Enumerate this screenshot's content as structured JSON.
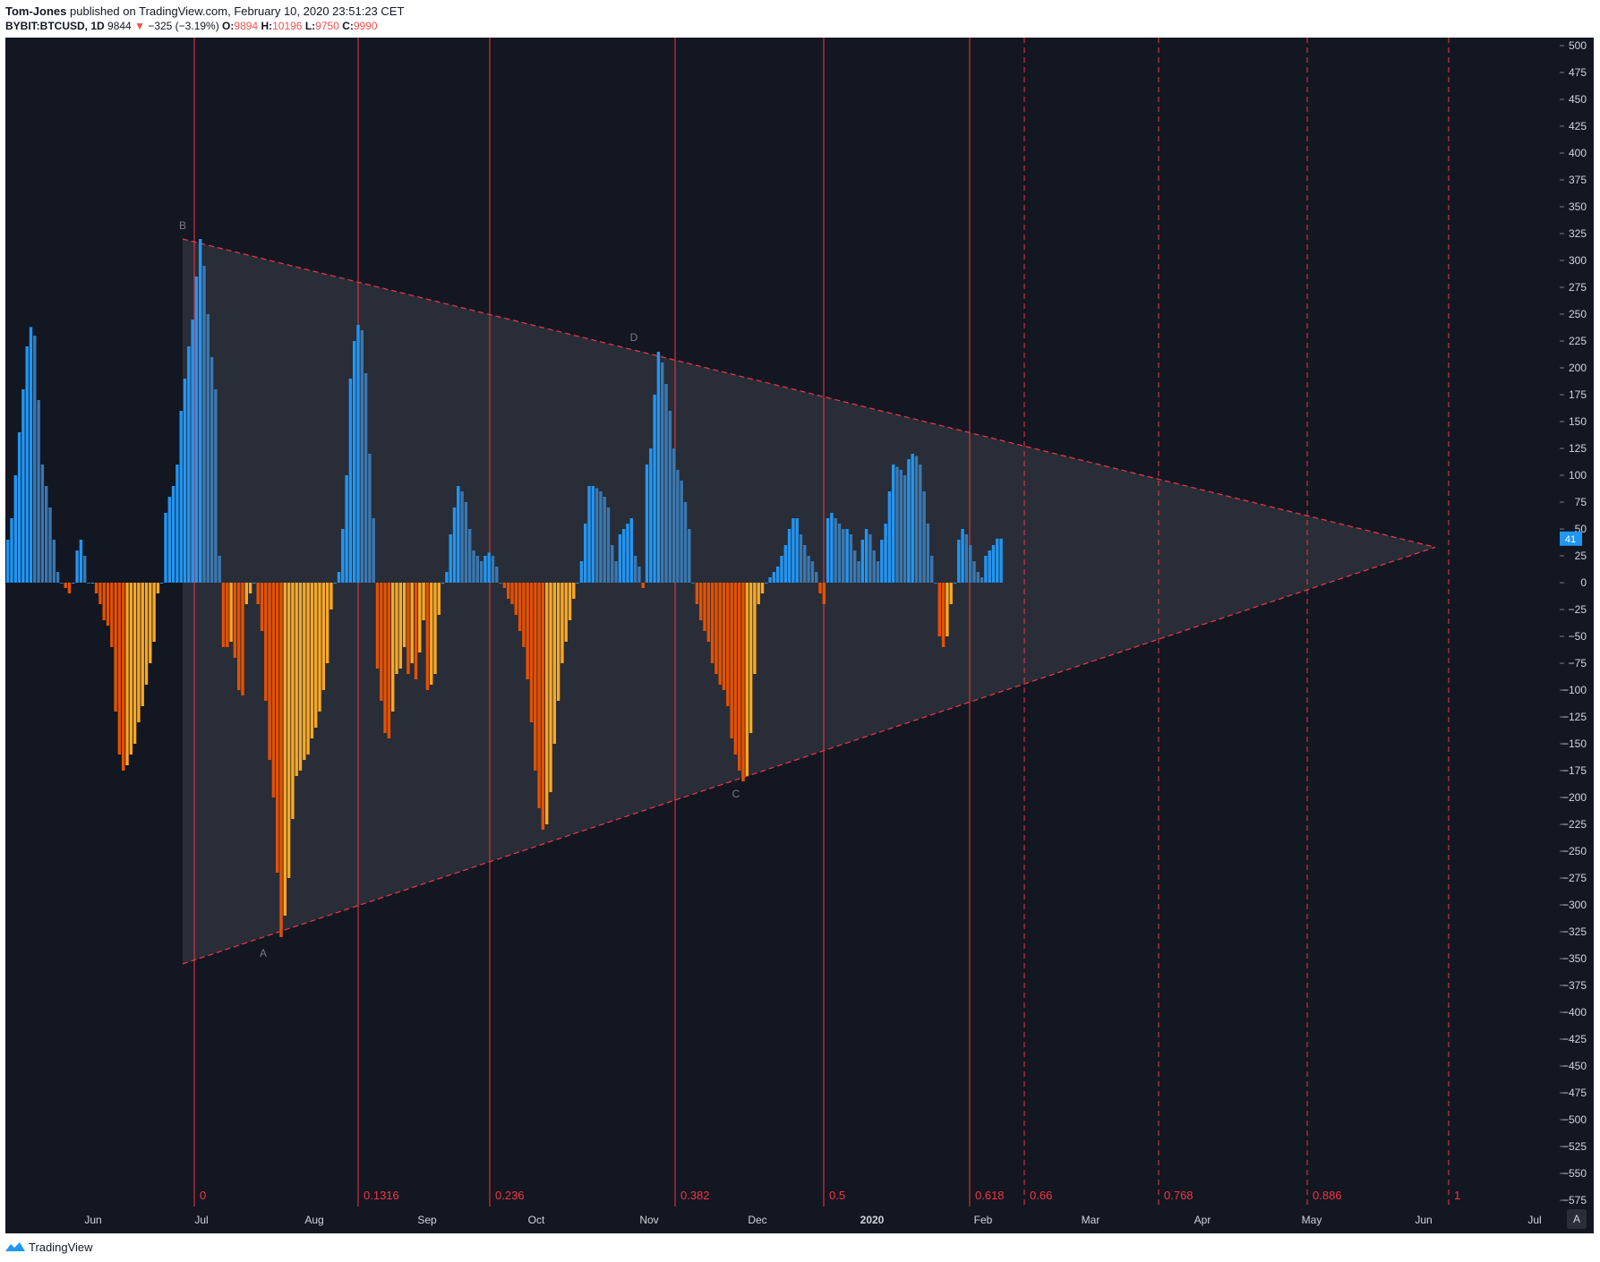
{
  "header": {
    "author": "Tom-Jones",
    "published_text": " published on TradingView.com, February 10, 2020 23:51:23 CET",
    "symbol": "BYBIT:BTCUSD",
    "interval": ", 1D",
    "last": "9844",
    "arrow": "▼",
    "change": "−325 (−3.19%)",
    "o_label": "O:",
    "o_value": "9894",
    "h_label": "H:",
    "h_value": "10196",
    "l_label": "L:",
    "l_value": "9750",
    "c_label": "C:",
    "c_value": "9990"
  },
  "footer": {
    "brand": "TradingView"
  },
  "colors": {
    "background": "#131722",
    "bull": "#2196f3",
    "bull_dim": "#3a78b0",
    "bear": "#e65100",
    "bear_light": "#f9a825",
    "fib_line": "#f23645",
    "triangle_fill": "#2a2e39",
    "axis_text": "#d1d4dc",
    "last_badge": "#2196f3"
  },
  "chart_data": {
    "type": "bar",
    "subtype": "histogram oscillator with triangle pattern and fibonacci time zones",
    "ylim": [
      -575,
      500
    ],
    "y_ticks": [
      500,
      475,
      450,
      425,
      400,
      375,
      350,
      325,
      300,
      275,
      250,
      225,
      200,
      175,
      150,
      125,
      100,
      75,
      50,
      25,
      0,
      -25,
      -50,
      -75,
      -100,
      -125,
      -150,
      -175,
      -200,
      -225,
      -250,
      -275,
      -300,
      -325,
      -350,
      -375,
      -400,
      -425,
      -450,
      -475,
      -500,
      -525,
      -550,
      -575
    ],
    "x_ticks": [
      "Jun",
      "Jul",
      "Aug",
      "Sep",
      "Oct",
      "Nov",
      "Dec",
      "2020",
      "Feb",
      "Mar",
      "Apr",
      "May",
      "Jun",
      "Jul"
    ],
    "last_value": "41",
    "axis_corner_label": "A",
    "pattern_labels": [
      "B",
      "D",
      "A",
      "C"
    ],
    "fib_time_labels": [
      "0",
      "0.1316",
      "0.236",
      "0.382",
      "0.5",
      "0.618",
      "0.66",
      "0.768",
      "0.886",
      "1"
    ],
    "fib_time_dashed": [
      false,
      false,
      false,
      false,
      false,
      false,
      true,
      true,
      true,
      true
    ],
    "triangle": {
      "upper": [
        [
          "B",
          320
        ],
        [
          "apex",
          33
        ]
      ],
      "lower": [
        [
          "A",
          -355
        ],
        [
          "apex",
          33
        ]
      ]
    },
    "series": [
      {
        "values": [
          40,
          60,
          100,
          140,
          180,
          220,
          238,
          230,
          170,
          110,
          90,
          70,
          40,
          10,
          0,
          -5,
          -10,
          0,
          30,
          40,
          25,
          0,
          0,
          -10,
          -20,
          -35,
          -40,
          -60,
          -120,
          -160,
          -175,
          -170,
          -160,
          -150,
          -130,
          -115,
          -95,
          -75,
          -55,
          -10,
          0,
          65,
          80,
          90,
          110,
          160,
          190,
          220,
          245,
          285,
          320,
          295,
          250,
          210,
          180,
          25,
          -60,
          -60,
          -55,
          -70,
          -100,
          -105,
          -20,
          -10,
          0,
          -20,
          -45,
          -110,
          -165,
          -200,
          -270,
          -330,
          -310,
          -275,
          -220,
          -180,
          -175,
          -165,
          -160,
          -145,
          -135,
          -120,
          -100,
          -75,
          -25,
          0,
          10,
          50,
          100,
          190,
          225,
          240,
          235,
          195,
          120,
          60,
          -80,
          -110,
          -140,
          -145,
          -120,
          -85,
          -80,
          -60,
          -85,
          -75,
          -90,
          -65,
          -35,
          -100,
          -95,
          -85,
          -30,
          0,
          10,
          45,
          70,
          90,
          85,
          75,
          50,
          30,
          25,
          20,
          25,
          28,
          25,
          15,
          0,
          -5,
          -15,
          -20,
          -30,
          -45,
          -60,
          -90,
          -130,
          -175,
          -210,
          -230,
          -225,
          -195,
          -150,
          -110,
          -75,
          -55,
          -35,
          -15,
          0,
          20,
          55,
          90,
          90,
          88,
          85,
          80,
          70,
          35,
          20,
          45,
          50,
          55,
          60,
          25,
          15,
          -5,
          110,
          125,
          175,
          215,
          205,
          185,
          160,
          125,
          105,
          95,
          75,
          50,
          0,
          -20,
          -35,
          -45,
          -55,
          -75,
          -85,
          -95,
          -100,
          -115,
          -145,
          -160,
          -175,
          -185,
          -180,
          -140,
          -85,
          -20,
          -10,
          0,
          5,
          10,
          15,
          25,
          35,
          50,
          60,
          60,
          45,
          35,
          25,
          20,
          10,
          -10,
          -20,
          60,
          65,
          60,
          55,
          50,
          50,
          45,
          30,
          20,
          40,
          50,
          45,
          30,
          20,
          40,
          55,
          85,
          110,
          108,
          105,
          100,
          115,
          120,
          118,
          110,
          85,
          55,
          25,
          0,
          -50,
          -60,
          -50,
          -20,
          0,
          40,
          50,
          45,
          35,
          20,
          10,
          5,
          25,
          30,
          35,
          41,
          41
        ]
      }
    ]
  }
}
